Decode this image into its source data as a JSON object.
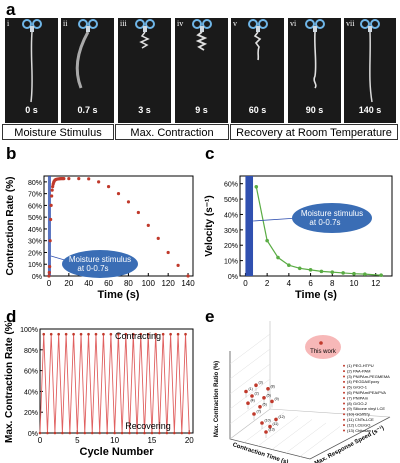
{
  "panels": {
    "a": "a",
    "b": "b",
    "c": "c",
    "d": "d",
    "e": "e"
  },
  "frames": [
    {
      "id": "i",
      "time": "0 s"
    },
    {
      "id": "ii",
      "time": "0.7 s"
    },
    {
      "id": "iii",
      "time": "3 s"
    },
    {
      "id": "iv",
      "time": "9 s"
    },
    {
      "id": "v",
      "time": "60 s"
    },
    {
      "id": "vi",
      "time": "90 s"
    },
    {
      "id": "vii",
      "time": "140 s"
    }
  ],
  "stage_labels": [
    "Moisture Stimulus",
    "Max. Contraction",
    "Recovery at Room Temperature"
  ],
  "chart_data": [
    {
      "panel": "b",
      "type": "scatter",
      "xlabel": "Time (s)",
      "ylabel": "Contraction Rate (%)",
      "xlim": [
        -5,
        145
      ],
      "ylim": [
        0,
        85
      ],
      "xticks": [
        "0",
        "20",
        "40",
        "60",
        "80",
        "100",
        "120",
        "140"
      ],
      "yticks": [
        "0%",
        "10%",
        "20%",
        "30%",
        "40%",
        "50%",
        "60%",
        "70%",
        "80%"
      ],
      "annotation": "Moisture stimulus at 0-0.7s",
      "colors": {
        "points": "#c0392b",
        "stimulus": "#3050b0"
      },
      "x": [
        0,
        0.35,
        0.7,
        1.2,
        1.7,
        2.2,
        2.7,
        3.2,
        3.7,
        4.2,
        4.7,
        5.2,
        6,
        7,
        8,
        9,
        10,
        11,
        12,
        13,
        14,
        15,
        20,
        30,
        40,
        50,
        60,
        70,
        80,
        90,
        100,
        110,
        120,
        130,
        140
      ],
      "y": [
        0,
        3,
        8,
        30,
        48,
        60,
        68,
        73,
        76,
        78,
        79.5,
        80.5,
        81.5,
        82,
        82.3,
        82.5,
        82.6,
        82.7,
        82.8,
        82.8,
        82.8,
        82.8,
        82.8,
        82.8,
        82.6,
        80,
        76,
        70,
        63,
        54,
        43,
        32,
        20,
        9,
        0
      ]
    },
    {
      "panel": "c",
      "type": "line",
      "xlabel": "Time (s)",
      "ylabel": "Velocity (s⁻¹)",
      "xlim": [
        -0.5,
        13.5
      ],
      "ylim": [
        0,
        65
      ],
      "xticks": [
        "0",
        "2",
        "4",
        "6",
        "8",
        "10",
        "12"
      ],
      "yticks": [
        "0%",
        "10%",
        "20%",
        "30%",
        "40%",
        "50%",
        "60%"
      ],
      "annotation": "Moisture stimulus at 0-0.7s",
      "colors": {
        "line": "#5aac44",
        "stimulus": "#3050b0"
      },
      "x": [
        1,
        2,
        3,
        4,
        5,
        6,
        7,
        8,
        9,
        10,
        11,
        12.5
      ],
      "y": [
        58,
        23,
        12,
        7,
        5,
        4,
        3,
        2.5,
        2,
        1.5,
        1.2,
        0.5
      ]
    },
    {
      "panel": "d",
      "type": "line",
      "xlabel": "Cycle Number",
      "ylabel": "Max. Contraction Rate (%)",
      "xlim": [
        0,
        20.5
      ],
      "ylim": [
        0,
        100
      ],
      "xticks": [
        "0",
        "5",
        "10",
        "15",
        "20"
      ],
      "yticks": [
        "0%",
        "20%",
        "40%",
        "60%",
        "80%",
        "100%"
      ],
      "top_label": "Contracting",
      "bottom_label": "Recovering",
      "colors": {
        "line": "#e06060",
        "points": "#c0392b"
      },
      "peak": 95,
      "valley": 0,
      "cycles": 20
    },
    {
      "panel": "e",
      "type": "scatter",
      "ylabel": "Max. Contraction Ratio (%)",
      "xlabel": "Contraction Time (s)",
      "zlabel": "Max. Response Speed (s⁻¹)",
      "highlight": "This work",
      "legend": [
        "(1)  PEG-HTPU",
        "(2)  PAA-PAM",
        "(3)  PNIPAm-PEGMEMA",
        "(4)  PEGDA/Epoxy",
        "(5)  G/GO-1",
        "(6)  PNIPAm/PEA/PVA",
        "(7)  PNIPAm",
        "(8)  G/GO-2",
        "(9)  Silicone vinyl LCE",
        "(10) GO/PPy",
        "(11) CNTs-LCE",
        "(12) LCE/GO",
        "(13) Chitosan"
      ],
      "points": [
        {
          "label": "1",
          "mx": 0.12,
          "my": 0.55
        },
        {
          "label": "2",
          "mx": 0.18,
          "my": 0.5
        },
        {
          "label": "3",
          "mx": 0.22,
          "my": 0.62
        },
        {
          "label": "4",
          "mx": 0.14,
          "my": 0.42
        },
        {
          "label": "5",
          "mx": 0.3,
          "my": 0.48
        },
        {
          "label": "6",
          "mx": 0.26,
          "my": 0.38
        },
        {
          "label": "7",
          "mx": 0.2,
          "my": 0.3
        },
        {
          "label": "8",
          "mx": 0.34,
          "my": 0.58
        },
        {
          "label": "9",
          "mx": 0.38,
          "my": 0.44
        },
        {
          "label": "10",
          "mx": 0.28,
          "my": 0.2
        },
        {
          "label": "11",
          "mx": 0.36,
          "my": 0.16
        },
        {
          "label": "12",
          "mx": 0.42,
          "my": 0.24
        },
        {
          "label": "13",
          "mx": 0.32,
          "my": 0.1
        }
      ]
    }
  ]
}
